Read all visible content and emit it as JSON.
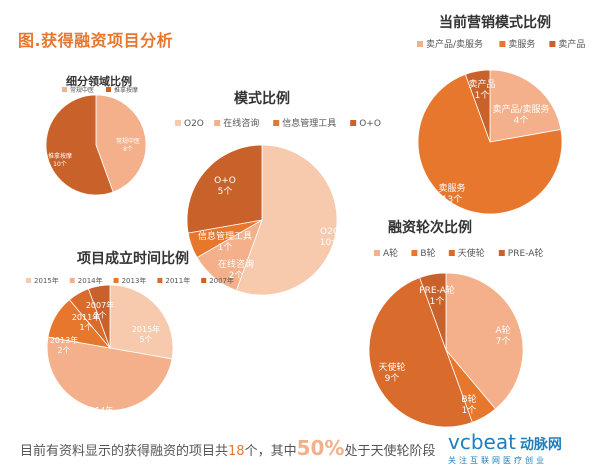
{
  "page": {
    "title": "图.获得融资项目分析",
    "footer": {
      "prefix": "目前有资料显示的获得融资的项目共",
      "count": "18",
      "middle": "个，其中",
      "percent": "50%",
      "suffix": "处于天使轮阶段"
    },
    "brand": {
      "logo_text": "vcbeat",
      "cn_name": "动脉网",
      "tagline": "关注互联网医疗创业"
    }
  },
  "colors": {
    "dark": "#c8622a",
    "orange": "#e8772e",
    "light": "#f3b08a",
    "pale": "#f7c9ad",
    "accent": "#e8772e",
    "brand": "#1f7fbf"
  },
  "chart_data": [
    {
      "id": "segment",
      "type": "pie",
      "title": "细分领域比例",
      "series": [
        {
          "name": "常规中医",
          "value": 8,
          "label": "常规中医",
          "value_label": "8个",
          "color": "#f3b08a"
        },
        {
          "name": "推拿按摩",
          "value": 10,
          "label": "推拿按摩",
          "value_label": "10个",
          "color": "#c8622a"
        }
      ]
    },
    {
      "id": "mode",
      "type": "pie",
      "title": "模式比例",
      "series": [
        {
          "name": "O2O",
          "value": 10,
          "label": "O2O",
          "value_label": "10个",
          "color": "#f7c9ad"
        },
        {
          "name": "在线咨询",
          "value": 2,
          "label": "在线咨询",
          "value_label": "2个",
          "color": "#f3b08a"
        },
        {
          "name": "信息管理工具",
          "value": 1,
          "label": "信息管理工具",
          "value_label": "1个",
          "color": "#e8772e"
        },
        {
          "name": "O+O",
          "value": 5,
          "label": "O+O",
          "value_label": "5个",
          "color": "#c8622a"
        }
      ]
    },
    {
      "id": "marketing",
      "type": "pie",
      "title": "当前营销模式比例",
      "series": [
        {
          "name": "卖产品/卖服务",
          "value": 4,
          "label": "卖产品/卖服务",
          "value_label": "4个",
          "color": "#f3b08a"
        },
        {
          "name": "卖服务",
          "value": 13,
          "label": "卖服务",
          "value_label": "13个",
          "color": "#e8772e"
        },
        {
          "name": "卖产品",
          "value": 1,
          "label": "卖产品",
          "value_label": "1个",
          "color": "#c8622a"
        }
      ]
    },
    {
      "id": "founding",
      "type": "pie",
      "title": "项目成立时间比例",
      "series": [
        {
          "name": "2015年",
          "value": 5,
          "label": "2015年",
          "value_label": "5个",
          "color": "#f7c9ad"
        },
        {
          "name": "2014年",
          "value": 9,
          "label": "2014年",
          "value_label": "9个",
          "color": "#f3b08a"
        },
        {
          "name": "2013年",
          "value": 2,
          "label": "2013年",
          "value_label": "2个",
          "color": "#e8772e"
        },
        {
          "name": "2011年",
          "value": 1,
          "label": "2011年",
          "value_label": "1个",
          "color": "#d96c2c"
        },
        {
          "name": "2007年",
          "value": 1,
          "label": "2007年",
          "value_label": "1个",
          "color": "#c8622a"
        }
      ]
    },
    {
      "id": "funding",
      "type": "pie",
      "title": "融资轮次比例",
      "series": [
        {
          "name": "A轮",
          "value": 7,
          "label": "A轮",
          "value_label": "7个",
          "color": "#f3b08a"
        },
        {
          "name": "B轮",
          "value": 1,
          "label": "B轮",
          "value_label": "1个",
          "color": "#e8772e"
        },
        {
          "name": "天使轮",
          "value": 9,
          "label": "天使轮",
          "value_label": "9个",
          "color": "#d96c2c"
        },
        {
          "name": "PRE-A轮",
          "value": 1,
          "label": "PRE-A轮",
          "value_label": "1个",
          "color": "#c8622a"
        }
      ]
    }
  ]
}
